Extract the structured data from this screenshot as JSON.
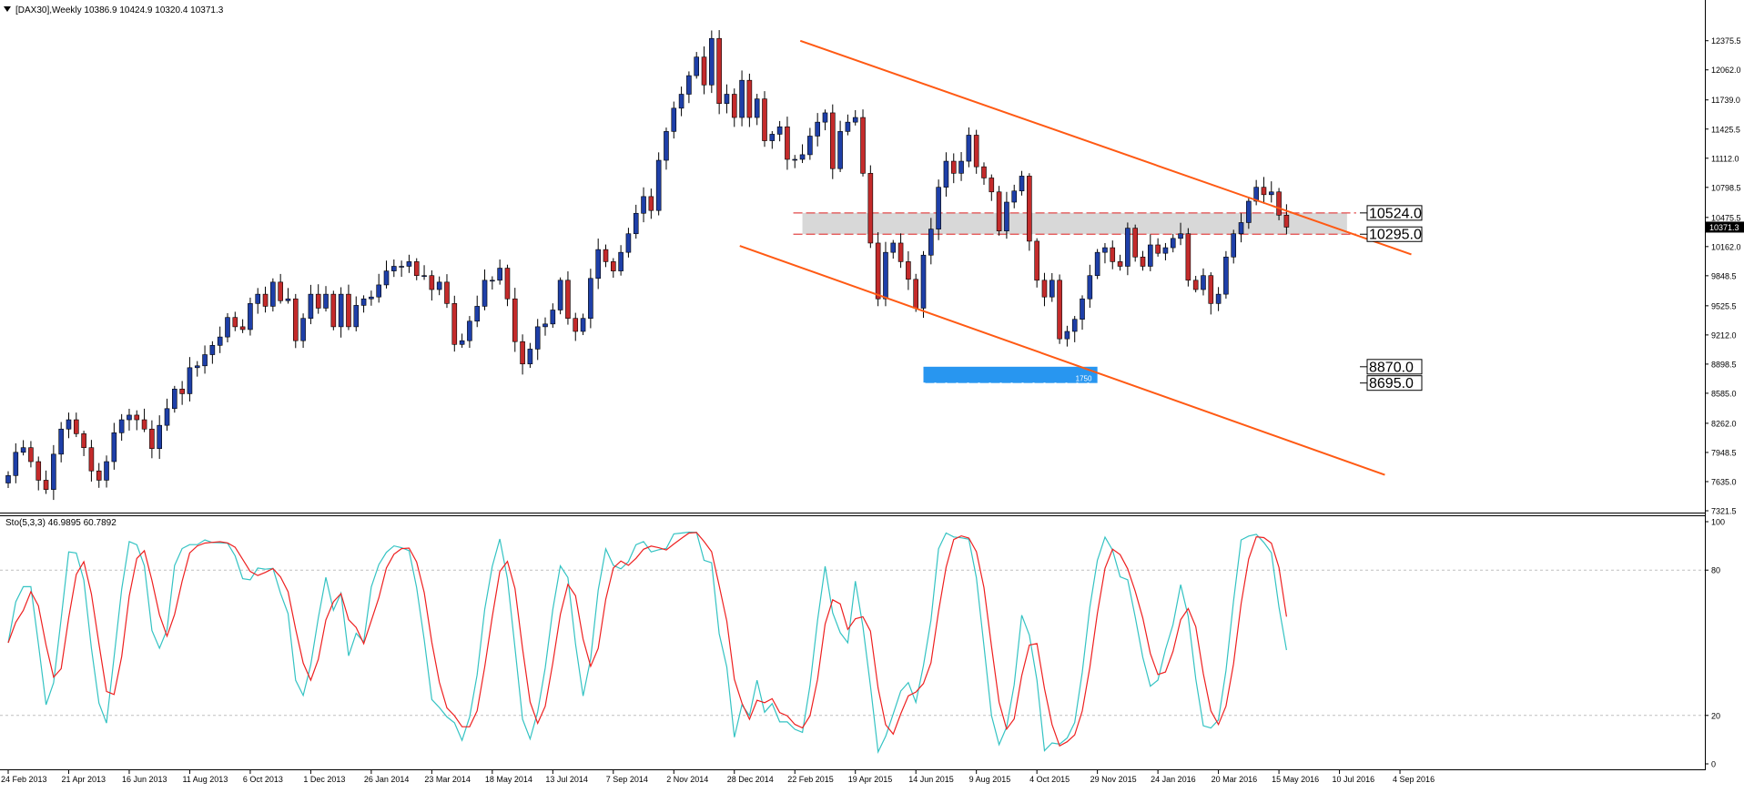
{
  "window": {
    "header": "[DAX30],Weekly  10386.9 10424.9 10320.4 10371.3",
    "menu_icon": "triangle-down-icon"
  },
  "chart_data": {
    "type": "candlestick",
    "symbol": "[DAX30]",
    "timeframe": "Weekly",
    "ohlc_header": "10386.9 10424.9 10320.4 10371.3",
    "price_axis": {
      "range": [
        7321.5,
        12500
      ],
      "ticks": [
        "12375.5",
        "12062.0",
        "11739.0",
        "11425.5",
        "11112.0",
        "10798.5",
        "10475.5",
        "10162.0",
        "9848.5",
        "9525.5",
        "9212.0",
        "8898.5",
        "8585.0",
        "8262.0",
        "7948.5",
        "7635.0",
        "7321.5"
      ]
    },
    "current_price": "10371.3",
    "time_labels": [
      "24 Feb 2013",
      "21 Apr 2013",
      "16 Jun 2013",
      "11 Aug 2013",
      "6 Oct 2013",
      "1 Dec 2013",
      "26 Jan 2014",
      "23 Mar 2014",
      "18 May 2014",
      "13 Jul 2014",
      "7 Sep 2014",
      "2 Nov 2014",
      "28 Dec 2014",
      "22 Feb 2015",
      "19 Apr 2015",
      "14 Jun 2015",
      "9 Aug 2015",
      "4 Oct 2015",
      "29 Nov 2015",
      "24 Jan 2016",
      "20 Mar 2016",
      "15 May 2016",
      "10 Jul 2016",
      "4 Sep 2016"
    ],
    "closes": [
      7700,
      7950,
      8000,
      7850,
      7650,
      7550,
      7930,
      8200,
      8300,
      8150,
      8000,
      7750,
      7650,
      7850,
      8160,
      8300,
      8350,
      8300,
      8200,
      7990,
      8240,
      8420,
      8630,
      8580,
      8860,
      8880,
      9000,
      9100,
      9190,
      9400,
      9300,
      9270,
      9550,
      9650,
      9520,
      9780,
      9580,
      9600,
      9150,
      9390,
      9650,
      9500,
      9650,
      9300,
      9650,
      9300,
      9530,
      9600,
      9620,
      9750,
      9900,
      9950,
      9950,
      10000,
      9850,
      9850,
      9700,
      9780,
      9550,
      9110,
      9150,
      9360,
      9520,
      9800,
      9800,
      9930,
      9600,
      9140,
      8900,
      9060,
      9300,
      9330,
      9480,
      9800,
      9390,
      9250,
      9390,
      9820,
      10130,
      10000,
      9900,
      10100,
      10300,
      10520,
      10700,
      10550,
      11090,
      11400,
      11650,
      11800,
      12000,
      12200,
      11900,
      12400,
      11700,
      11800,
      11550,
      11950,
      11550,
      11750,
      11300,
      11370,
      11450,
      11100,
      11100,
      11150,
      11350,
      11500,
      11600,
      11000,
      11400,
      11500,
      11550,
      10950,
      10200,
      9600,
      10100,
      10200,
      10000,
      9810,
      9500,
      10070,
      10350,
      10800,
      11080,
      10950,
      11080,
      11360,
      11020,
      10900,
      10750,
      10330,
      10640,
      10760,
      10920,
      10220,
      9800,
      9620,
      9800,
      9170,
      9250,
      9380,
      9600,
      9850,
      10100,
      10150,
      10000,
      9950,
      10360,
      10050,
      9950,
      10180,
      10090,
      10150,
      10250,
      10300,
      9800,
      9700,
      9850,
      9550,
      9650,
      10050,
      10300,
      10420,
      10650,
      10800,
      10720,
      10750,
      10500,
      10371
    ],
    "overlays": {
      "upper_trend": {
        "from": [
          "22 Feb 2015",
          12375
        ],
        "to": [
          "4 Sep 2016",
          10120
        ]
      },
      "lower_trend": {
        "from": [
          "28 Dec 2014",
          10170
        ],
        "to": [
          "4 Sep 2016",
          7650
        ]
      },
      "resistance_zone": [
        "10524.0",
        "10295.0"
      ],
      "target_zone": [
        "8870.0",
        "8695.0"
      ],
      "target_zone_label": "1750"
    },
    "stochastic": {
      "header": "Sto(5,3,3) 46.9895 60.7892",
      "k_label": "46.9895",
      "d_label": "60.7892",
      "range": [
        0,
        100
      ],
      "ticks": [
        "100",
        "80",
        "20",
        "0"
      ],
      "levels": [
        80,
        20
      ]
    },
    "colors": {
      "bull": "#1e3fa8",
      "bear": "#c42b2b",
      "wick": "#000000",
      "trend": "#ff5a14",
      "zone_fill": "#d4d4d4",
      "zone_line": "#e24848",
      "target_fill": "#2896f0",
      "stoch_main": "#34c3c3",
      "stoch_signal": "#ee2020",
      "grid": "#c0c0c0"
    }
  }
}
